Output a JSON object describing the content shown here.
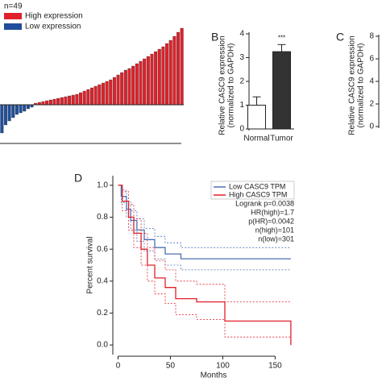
{
  "chart_data": [
    {
      "type": "waterfall",
      "subtitle": "n=49",
      "ylim": [
        -4.5,
        10
      ],
      "series": [
        {
          "name": "High expression",
          "color": "#e0202a",
          "values": [
            0.2,
            0.3,
            0.4,
            0.5,
            0.6,
            0.7,
            0.8,
            0.9,
            1.0,
            1.1,
            1.2,
            1.3,
            1.5,
            1.7,
            1.9,
            2.1,
            2.3,
            2.5,
            2.7,
            2.9,
            3.1,
            3.4,
            3.7,
            4.0,
            4.3,
            4.5,
            4.8,
            5.1,
            5.4,
            5.7,
            6.0,
            6.3,
            6.6,
            6.9,
            7.2,
            7.6,
            8.0,
            8.5,
            9.0,
            9.5
          ]
        },
        {
          "name": "Low expression",
          "color": "#1f4e9c",
          "values": [
            -3.5,
            -2.5,
            -2.0,
            -1.6,
            -1.2,
            -1.0,
            -0.8,
            -0.5,
            -0.3
          ]
        }
      ]
    },
    {
      "type": "bar",
      "panel": "B",
      "ylabel": [
        "Relative CASC9 expression",
        "(normalized to GAPDH)"
      ],
      "categories": [
        "Normal",
        "Tumor"
      ],
      "values": [
        1.0,
        3.25
      ],
      "errors": [
        0.35,
        0.3
      ],
      "colors": [
        "#ffffff",
        "#333333"
      ],
      "annotation": "***",
      "ylim": [
        0,
        4
      ],
      "yticks": [
        0,
        1,
        2,
        3,
        4
      ]
    },
    {
      "type": "bar",
      "panel": "C",
      "ylabel": [
        "Relative CASC9 expression",
        "(normalized to GAPDH)"
      ],
      "ylim": [
        0,
        8
      ],
      "yticks": [
        0,
        2,
        4,
        6,
        8
      ]
    },
    {
      "type": "line",
      "panel": "D",
      "ylabel": "Percent survival",
      "xlabel": "Months",
      "xlim": [
        -5,
        172
      ],
      "xticks": [
        0,
        50,
        100,
        150
      ],
      "ylim": [
        -0.05,
        1.05
      ],
      "yticks": [
        {
          "value": 0,
          "label": "0.0"
        },
        0.2,
        0.4,
        0.6,
        0.8,
        {
          "value": 1,
          "label": "1.0"
        }
      ],
      "annotations": [
        "Logrank p=0.0038",
        "HR(high)=1.7",
        "p(HR)=0.0042",
        "n(high)=101",
        "n(low)=301"
      ],
      "series": [
        {
          "name": "Low CASC9 TPM",
          "color": "#4a6fb5",
          "x": [
            0,
            3,
            3,
            8,
            8,
            12,
            12,
            18,
            18,
            25,
            25,
            35,
            35,
            45,
            45,
            60,
            60,
            165
          ],
          "values": [
            1,
            1,
            0.93,
            0.93,
            0.85,
            0.85,
            0.78,
            0.78,
            0.72,
            0.72,
            0.66,
            0.66,
            0.61,
            0.61,
            0.57,
            0.57,
            0.54,
            0.54
          ],
          "ci_upper": [
            1,
            1,
            0.97,
            0.97,
            0.9,
            0.9,
            0.84,
            0.84,
            0.79,
            0.79,
            0.73,
            0.73,
            0.68,
            0.68,
            0.64,
            0.64,
            0.61,
            0.61
          ],
          "ci_lower": [
            1,
            1,
            0.89,
            0.89,
            0.8,
            0.8,
            0.72,
            0.72,
            0.65,
            0.65,
            0.59,
            0.59,
            0.54,
            0.54,
            0.5,
            0.5,
            0.47,
            0.47
          ]
        },
        {
          "name": "High CASC9 TPM",
          "color": "#e0202a",
          "x": [
            0,
            4,
            4,
            10,
            10,
            15,
            15,
            22,
            22,
            28,
            28,
            35,
            35,
            45,
            45,
            55,
            55,
            75,
            75,
            102,
            102,
            165,
            165
          ],
          "values": [
            1,
            1,
            0.9,
            0.9,
            0.8,
            0.8,
            0.7,
            0.7,
            0.6,
            0.6,
            0.5,
            0.5,
            0.42,
            0.42,
            0.36,
            0.36,
            0.29,
            0.29,
            0.27,
            0.27,
            0.15,
            0.15,
            0.0
          ],
          "ci_upper": [
            1,
            1,
            0.96,
            0.96,
            0.88,
            0.88,
            0.79,
            0.79,
            0.7,
            0.7,
            0.61,
            0.61,
            0.53,
            0.53,
            0.47,
            0.47,
            0.4,
            0.4,
            0.38,
            0.38,
            0.27,
            0.27,
            0.27
          ],
          "ci_lower": [
            1,
            1,
            0.84,
            0.84,
            0.72,
            0.72,
            0.61,
            0.61,
            0.5,
            0.5,
            0.4,
            0.4,
            0.32,
            0.32,
            0.26,
            0.26,
            0.19,
            0.19,
            0.16,
            0.16,
            0.05,
            0.05,
            0.05
          ]
        }
      ]
    }
  ]
}
